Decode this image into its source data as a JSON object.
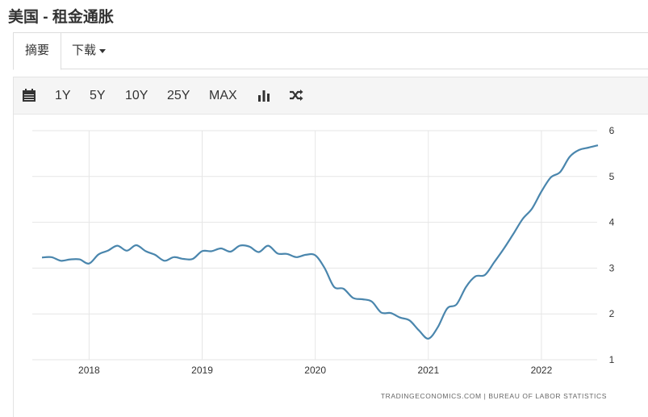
{
  "page": {
    "title": "美国 - 租金通胀"
  },
  "tabs": [
    {
      "label": "摘要"
    },
    {
      "label": "下载"
    }
  ],
  "toolbar": {
    "ranges": [
      "1Y",
      "5Y",
      "10Y",
      "25Y",
      "MAX"
    ],
    "icons": [
      "calendar-icon",
      "bar-chart-icon",
      "shuffle-icon"
    ]
  },
  "colors": {
    "line": "#4a86ad",
    "grid": "#e6e6e6"
  },
  "chart_data": {
    "type": "line",
    "title": "",
    "xlabel": "",
    "ylabel": "",
    "x_ticks": [
      "2018",
      "2019",
      "2020",
      "2021",
      "2022"
    ],
    "y_ticks": [
      "1",
      "2",
      "3",
      "4",
      "5",
      "6"
    ],
    "ylim": [
      1,
      6
    ],
    "xlim": [
      "2017-08",
      "2022-08"
    ],
    "grid": true,
    "y_axis_position": "right",
    "series": [
      {
        "x": [
          "2017-08",
          "2017-09",
          "2017-10",
          "2017-11",
          "2017-12",
          "2018-01",
          "2018-02",
          "2018-03",
          "2018-04",
          "2018-05",
          "2018-06",
          "2018-07",
          "2018-08",
          "2018-09",
          "2018-10",
          "2018-11",
          "2018-12",
          "2019-01",
          "2019-02",
          "2019-03",
          "2019-04",
          "2019-05",
          "2019-06",
          "2019-07",
          "2019-08",
          "2019-09",
          "2019-10",
          "2019-11",
          "2019-12",
          "2020-01",
          "2020-02",
          "2020-03",
          "2020-04",
          "2020-05",
          "2020-06",
          "2020-07",
          "2020-08",
          "2020-09",
          "2020-10",
          "2020-11",
          "2020-12",
          "2021-01",
          "2021-02",
          "2021-03",
          "2021-04",
          "2021-05",
          "2021-06",
          "2021-07",
          "2021-08",
          "2021-09",
          "2021-10",
          "2021-11",
          "2021-12",
          "2022-01",
          "2022-02",
          "2022-03",
          "2022-04",
          "2022-05",
          "2022-06",
          "2022-07"
        ],
        "values": [
          3.23,
          3.24,
          3.16,
          3.19,
          3.19,
          3.1,
          3.3,
          3.38,
          3.49,
          3.38,
          3.5,
          3.37,
          3.29,
          3.16,
          3.24,
          3.2,
          3.2,
          3.37,
          3.37,
          3.43,
          3.36,
          3.49,
          3.47,
          3.35,
          3.49,
          3.32,
          3.31,
          3.24,
          3.29,
          3.28,
          3.0,
          2.59,
          2.55,
          2.35,
          2.32,
          2.27,
          2.03,
          2.02,
          1.92,
          1.86,
          1.64,
          1.46,
          1.71,
          2.12,
          2.21,
          2.59,
          2.82,
          2.85,
          3.13,
          3.42,
          3.74,
          4.07,
          4.3,
          4.67,
          4.98,
          5.1,
          5.43,
          5.58,
          5.63,
          5.68
        ]
      }
    ]
  },
  "source": "TRADINGECONOMICS.COM  |  BUREAU OF LABOR STATISTICS"
}
